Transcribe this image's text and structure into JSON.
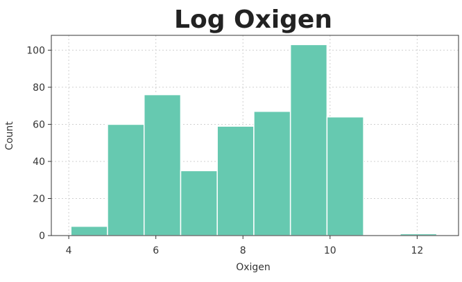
{
  "chart_data": {
    "type": "bar",
    "title": "Log Oxigen",
    "xlabel": "Oxigen",
    "ylabel": "Count",
    "bin_edges": [
      4.05,
      4.89,
      5.73,
      6.57,
      7.41,
      8.25,
      9.09,
      9.93,
      10.77,
      11.61,
      12.45
    ],
    "values": [
      5,
      60,
      76,
      35,
      59,
      67,
      103,
      64,
      0,
      1
    ],
    "xlim": [
      3.6,
      12.95
    ],
    "ylim": [
      0,
      108
    ],
    "xticks": [
      4,
      6,
      8,
      10,
      12
    ],
    "yticks": [
      0,
      20,
      40,
      60,
      80,
      100
    ],
    "grid": true,
    "bar_color": "#66c9b0"
  }
}
